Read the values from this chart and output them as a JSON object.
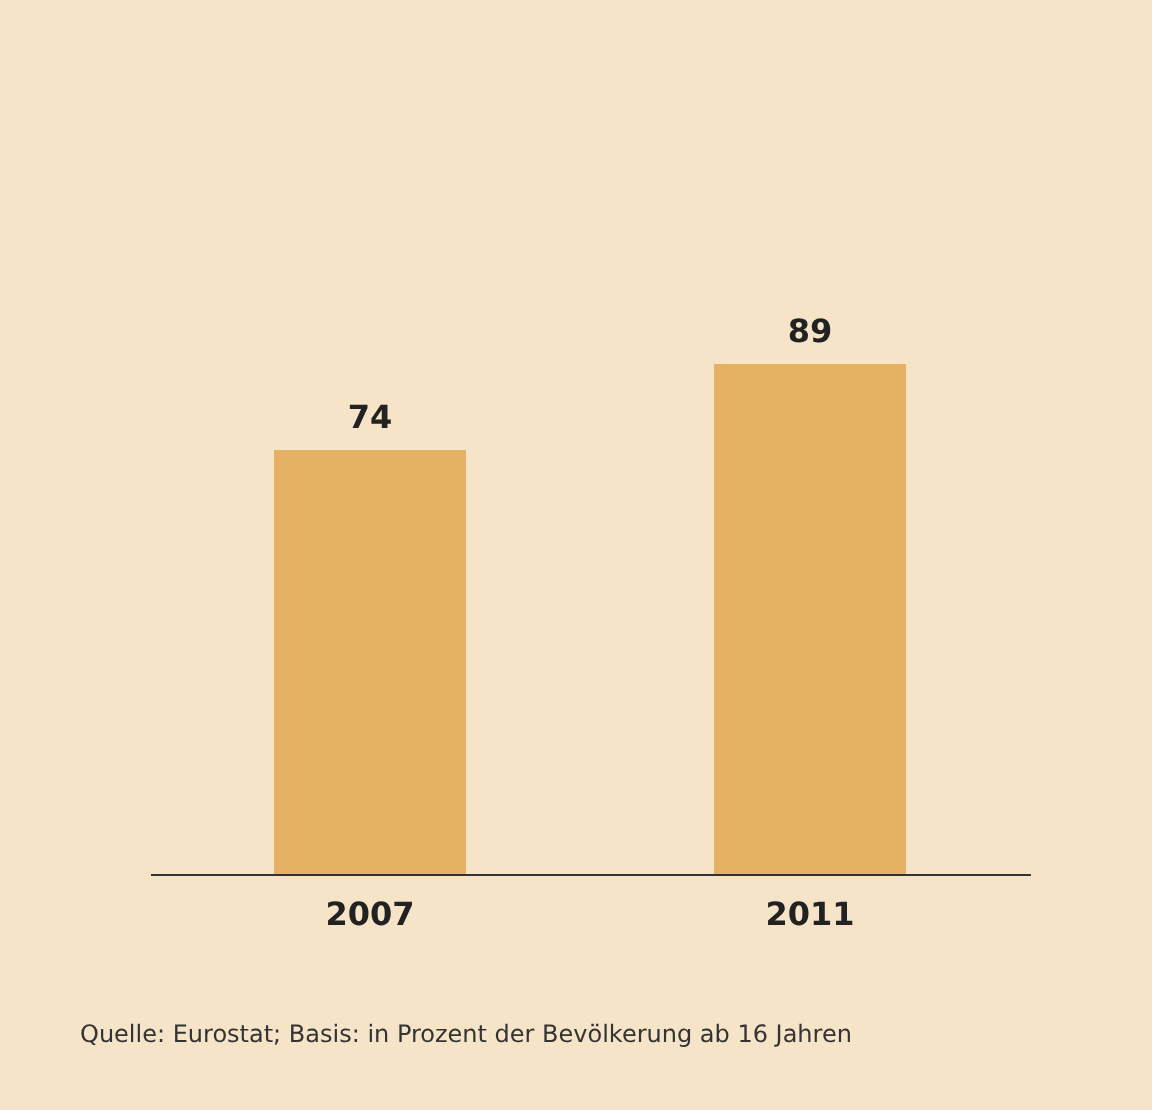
{
  "chart_data": {
    "type": "bar",
    "categories": [
      "2007",
      "2011"
    ],
    "values": [
      74,
      89
    ],
    "color": "#e5b263",
    "data_labels": true,
    "annotations": [
      "Quelle: Eurostat; Basis: in Prozent der Bevölkerung ab 16 Jahren"
    ]
  }
}
